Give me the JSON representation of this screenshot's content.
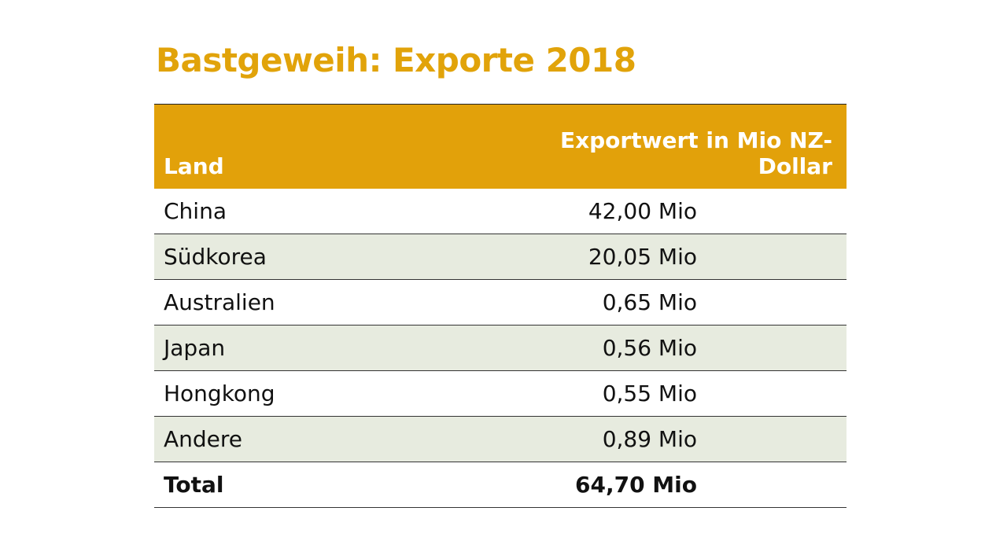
{
  "title": "Bastgeweih: Exporte 2018",
  "table": {
    "header": [
      "Land",
      "Exportwert in Mio NZ-Dollar"
    ],
    "rows": [
      [
        "China",
        "42,00 Mio"
      ],
      [
        "Südkorea",
        "20,05 Mio"
      ],
      [
        "Australien",
        "0,65 Mio"
      ],
      [
        "Japan",
        "0,56 Mio"
      ],
      [
        "Hongkong",
        "0,55 Mio"
      ],
      [
        "Andere",
        "0,89 Mio"
      ]
    ],
    "total": [
      "Total",
      "64,70 Mio"
    ]
  }
}
